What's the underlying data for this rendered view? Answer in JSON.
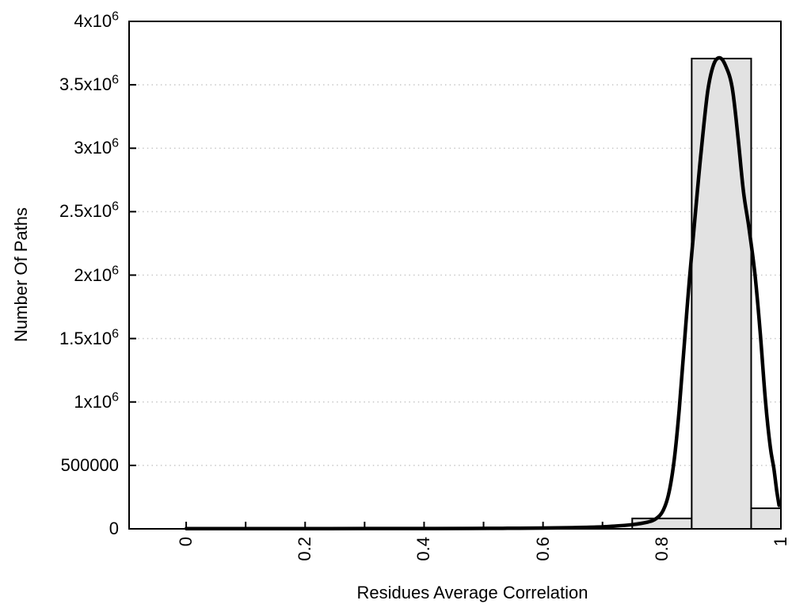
{
  "chart_data": {
    "type": "bar",
    "subtype": "histogram-with-fit-curve",
    "title": "",
    "xlabel": "Residues Average Correlation",
    "ylabel": "Number Of Paths",
    "xlim": [
      -0.096,
      1.0
    ],
    "ylim": [
      0,
      4000000
    ],
    "grid": "horizontal-dotted",
    "legend": "none",
    "xticks": [
      0,
      0.1,
      0.2,
      0.3,
      0.4,
      0.5,
      0.6,
      0.7,
      0.8,
      0.9,
      1.0
    ],
    "xtick_labels": [
      {
        "value": 0,
        "label": "0"
      },
      {
        "value": 0.2,
        "label": "0.2"
      },
      {
        "value": 0.4,
        "label": "0.4"
      },
      {
        "value": 0.6,
        "label": "0.6"
      },
      {
        "value": 0.8,
        "label": "0.8"
      },
      {
        "value": 1.0,
        "label": "1"
      }
    ],
    "yticks": [
      {
        "value": 0,
        "label": "0",
        "base": "0",
        "exp": ""
      },
      {
        "value": 500000,
        "label": "500000",
        "base": "500000",
        "exp": ""
      },
      {
        "value": 1000000,
        "label": "1x10^6",
        "base": "1x10",
        "exp": "6"
      },
      {
        "value": 1500000,
        "label": "1.5x10^6",
        "base": "1.5x10",
        "exp": "6"
      },
      {
        "value": 2000000,
        "label": "2x10^6",
        "base": "2x10",
        "exp": "6"
      },
      {
        "value": 2500000,
        "label": "2.5x10^6",
        "base": "2.5x10",
        "exp": "6"
      },
      {
        "value": 3000000,
        "label": "3x10^6",
        "base": "3x10",
        "exp": "6"
      },
      {
        "value": 3500000,
        "label": "3.5x10^6",
        "base": "3.5x10",
        "exp": "6"
      },
      {
        "value": 4000000,
        "label": "4x10^6",
        "base": "4x10",
        "exp": "6"
      }
    ],
    "bars": [
      {
        "x0": 0.75,
        "x1": 0.85,
        "value": 82000
      },
      {
        "x0": 0.85,
        "x1": 0.95,
        "value": 3707000
      },
      {
        "x0": 0.95,
        "x1": 1.0,
        "value": 162000
      }
    ],
    "curve": [
      [
        0.0,
        2000
      ],
      [
        0.06,
        2000
      ],
      [
        0.12,
        2000
      ],
      [
        0.18,
        2000
      ],
      [
        0.24,
        2000
      ],
      [
        0.3,
        2200
      ],
      [
        0.36,
        2500
      ],
      [
        0.42,
        2800
      ],
      [
        0.48,
        3300
      ],
      [
        0.54,
        4200
      ],
      [
        0.6,
        6000
      ],
      [
        0.65,
        9500
      ],
      [
        0.69,
        14000
      ],
      [
        0.72,
        21000
      ],
      [
        0.75,
        33000
      ],
      [
        0.775,
        52000
      ],
      [
        0.79,
        80000
      ],
      [
        0.802,
        145000
      ],
      [
        0.812,
        290000
      ],
      [
        0.821,
        560000
      ],
      [
        0.829,
        940000
      ],
      [
        0.837,
        1420000
      ],
      [
        0.846,
        1960000
      ],
      [
        0.856,
        2480000
      ],
      [
        0.866,
        2980000
      ],
      [
        0.877,
        3450000
      ],
      [
        0.887,
        3660000
      ],
      [
        0.897,
        3713000
      ],
      [
        0.907,
        3650000
      ],
      [
        0.918,
        3480000
      ],
      [
        0.928,
        3080000
      ],
      [
        0.937,
        2660000
      ],
      [
        0.946,
        2380000
      ],
      [
        0.956,
        2020000
      ],
      [
        0.965,
        1560000
      ],
      [
        0.974,
        1010000
      ],
      [
        0.982,
        650000
      ],
      [
        0.988,
        480000
      ],
      [
        0.993,
        300000
      ],
      [
        0.997,
        185000
      ]
    ],
    "colors": {
      "background": "#ffffff",
      "axis": "#000000",
      "text": "#000000",
      "grid": "#c8c8c8",
      "bar_fill": "#e2e2e2",
      "bar_stroke": "#000000",
      "curve": "#000000"
    }
  }
}
